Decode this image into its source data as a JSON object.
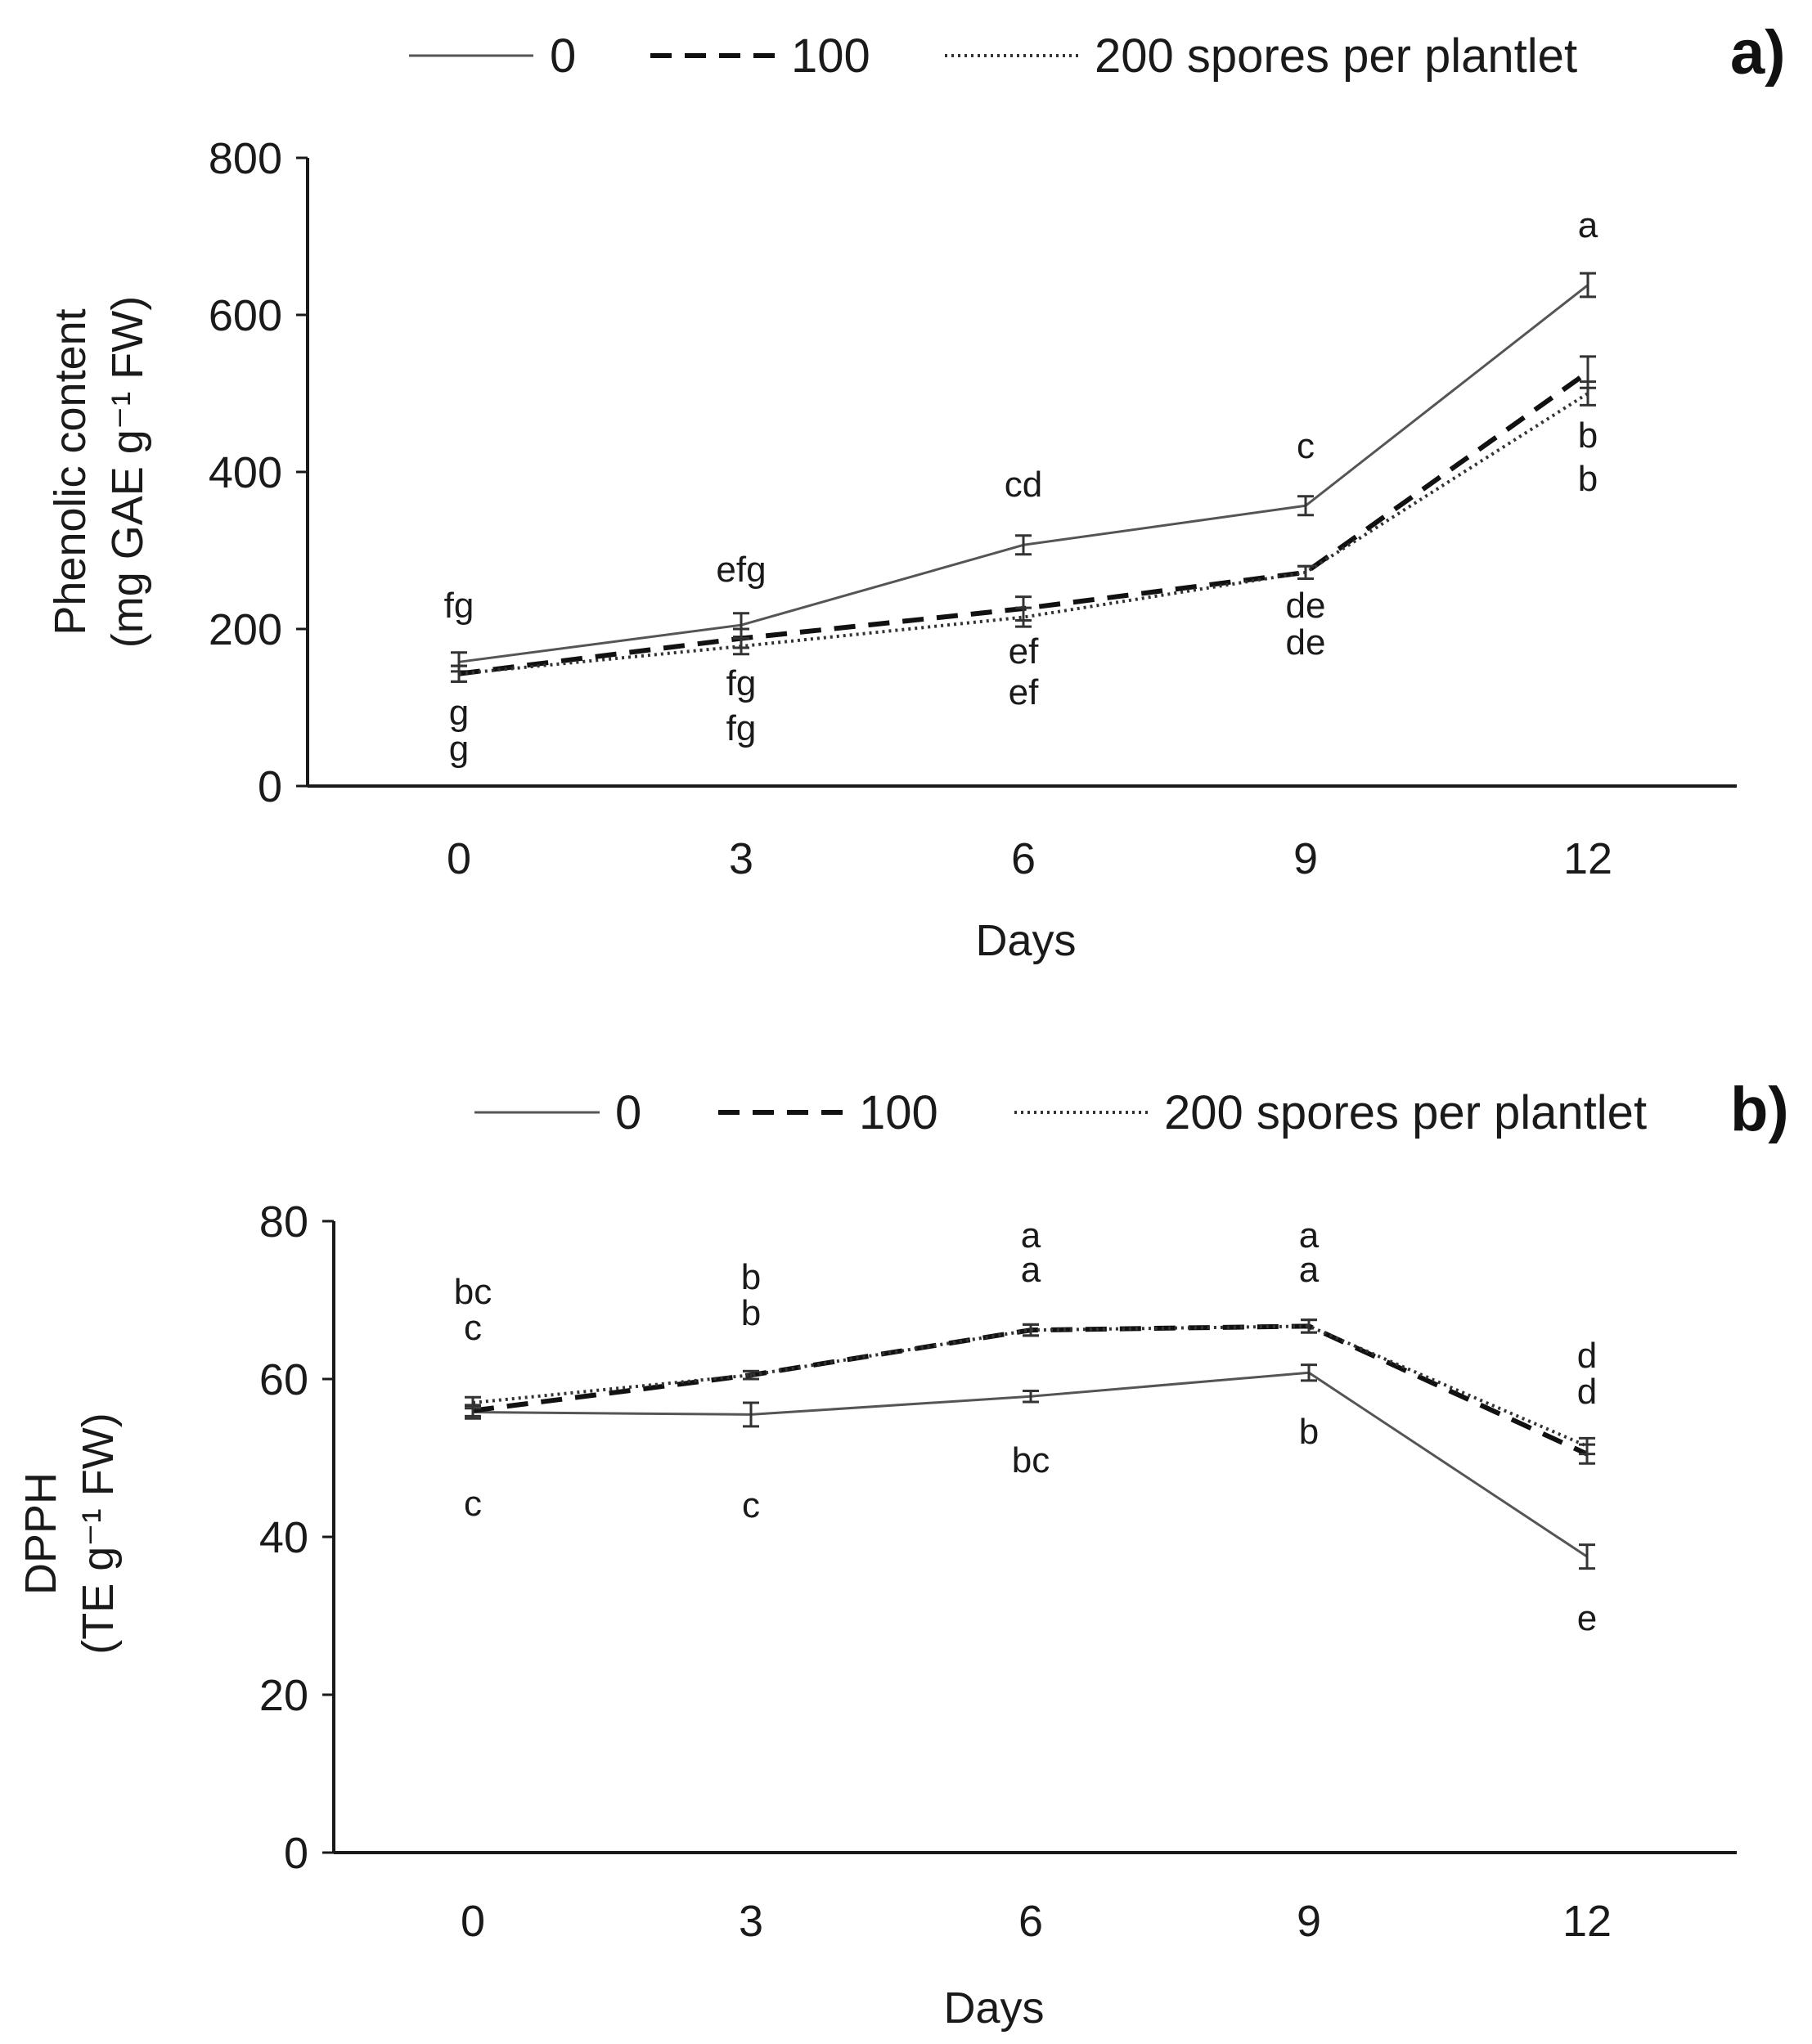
{
  "chart_data": [
    {
      "type": "line",
      "panel_label": "a)",
      "legend": [
        "0",
        "100",
        "200 spores per plantlet"
      ],
      "xlabel": "Days",
      "ylabel_line1": "Phenolic content",
      "ylabel_line2": "(mg GAE g⁻¹ FW)",
      "x": [
        0,
        3,
        6,
        9,
        12
      ],
      "x_tick_labels": [
        "0",
        "3",
        "6",
        "9",
        "12"
      ],
      "y_ticks": [
        0,
        200,
        400,
        600,
        800
      ],
      "ylim": [
        0,
        800
      ],
      "grid": false,
      "series": [
        {
          "name": "0",
          "style": "solid",
          "values": [
            158,
            205,
            307,
            357,
            638
          ],
          "errors": [
            12,
            15,
            12,
            12,
            15
          ],
          "sig_labels": [
            "fg",
            "efg",
            "cd",
            "c",
            "a"
          ]
        },
        {
          "name": "100",
          "style": "dashed",
          "values": [
            143,
            188,
            226,
            272,
            527
          ],
          "errors": [
            10,
            12,
            15,
            8,
            20
          ],
          "sig_labels": [
            "g",
            "fg",
            "ef",
            "de",
            "b"
          ]
        },
        {
          "name": "200 spores per plantlet",
          "style": "dotted",
          "values": [
            143,
            178,
            215,
            272,
            500
          ],
          "errors": [
            10,
            10,
            12,
            8,
            15
          ],
          "sig_labels": [
            "g",
            "fg",
            "ef",
            "de",
            "b"
          ]
        }
      ]
    },
    {
      "type": "line",
      "panel_label": "b)",
      "legend": [
        "0",
        "100",
        "200 spores per plantlet"
      ],
      "xlabel": "Days",
      "ylabel_line1": "DPPH",
      "ylabel_line2": "(TE g⁻¹ FW)",
      "x": [
        0,
        3,
        6,
        9,
        12
      ],
      "x_tick_labels": [
        "0",
        "3",
        "6",
        "9",
        "12"
      ],
      "y_ticks": [
        0,
        20,
        40,
        60,
        80
      ],
      "ylim": [
        0,
        80
      ],
      "grid": false,
      "series": [
        {
          "name": "0",
          "style": "solid",
          "values": [
            55.8,
            55.5,
            57.8,
            60.8,
            37.5
          ],
          "errors": [
            0.8,
            1.5,
            0.7,
            1.0,
            1.5
          ],
          "sig_labels": [
            "c",
            "c",
            "bc",
            "b",
            "e"
          ]
        },
        {
          "name": "100",
          "style": "dashed",
          "values": [
            56.0,
            60.5,
            66.2,
            66.7,
            50.5
          ],
          "errors": [
            0.7,
            0.5,
            0.7,
            0.8,
            1.2
          ],
          "sig_labels": [
            "c",
            "b",
            "a",
            "a",
            "d"
          ]
        },
        {
          "name": "200 spores per plantlet",
          "style": "dotted",
          "values": [
            57.0,
            60.5,
            66.2,
            66.7,
            51.5
          ],
          "errors": [
            0.7,
            0.5,
            0.7,
            0.8,
            1.0
          ],
          "sig_labels": [
            "bc",
            "b",
            "a",
            "a",
            "d"
          ]
        }
      ]
    }
  ]
}
